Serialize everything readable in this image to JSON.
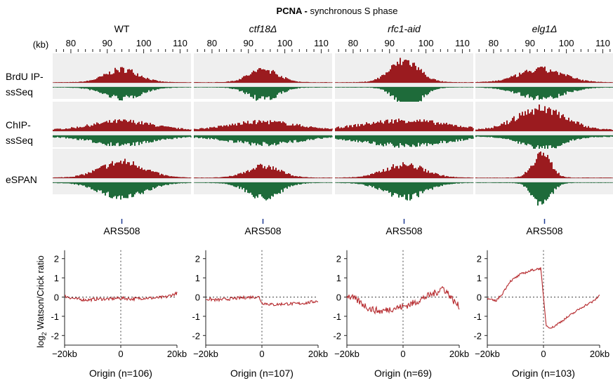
{
  "title": {
    "bold": "PCNA -",
    "rest": " synchronous S phase"
  },
  "kb_unit_label": "(kb)",
  "coordinate_ticks": [
    "80",
    "90",
    "100",
    "110"
  ],
  "coordinate_range_kb": [
    75,
    113
  ],
  "columns": [
    {
      "name": "WT",
      "italic": false,
      "origin_label": "ARS508",
      "xaxis_title": "Origin (n=106)"
    },
    {
      "name": "ctf18Δ",
      "italic": true,
      "origin_label": "ARS508",
      "xaxis_title": "Origin (n=107)"
    },
    {
      "name": "rfc1-aid",
      "italic": true,
      "origin_label": "ARS508",
      "xaxis_title": "Origin (n=69)"
    },
    {
      "name": "elg1Δ",
      "italic": true,
      "origin_label": "ARS508",
      "xaxis_title": "Origin (n=103)"
    }
  ],
  "track_rows": [
    {
      "label_lines": [
        "BrdU IP-",
        "ssSeq"
      ],
      "scale_top": "367",
      "scale_bottom": "421"
    },
    {
      "label_lines": [
        "ChIP-",
        "ssSeq"
      ],
      "scale_top": "188",
      "scale_bottom": "197"
    },
    {
      "label_lines": [
        "eSPAN"
      ],
      "scale_top": "485",
      "scale_bottom": "506"
    }
  ],
  "colors": {
    "watson": "#9b1b1f",
    "crick": "#1e6b3a",
    "ratio_line": "#b5282c",
    "track_bg": "#efefef",
    "origin_tick": "#1f3a93"
  },
  "chart_data": {
    "type": "line",
    "ylabel_prefix": "log",
    "ylabel_sub": "2",
    "ylabel_suffix": " Watson/Crick ratio",
    "ylim": [
      -2.5,
      2.5
    ],
    "yticks": [
      "2",
      "1",
      "0",
      "-1",
      "-2"
    ],
    "xlim_kb": [
      -20,
      20
    ],
    "xtick_labels": [
      "−20kb",
      "0",
      "20kb"
    ],
    "series": [
      {
        "x_kb": [
          -20,
          -16,
          -12,
          -8,
          -4,
          0,
          4,
          8,
          12,
          16,
          20
        ],
        "y": [
          0.05,
          -0.1,
          -0.15,
          -0.1,
          -0.1,
          -0.05,
          -0.1,
          -0.05,
          -0.05,
          0.0,
          0.2
        ]
      },
      {
        "x_kb": [
          -20,
          -16,
          -12,
          -8,
          -4,
          -1,
          0,
          2,
          4,
          8,
          12,
          16,
          20
        ],
        "y": [
          -0.1,
          -0.15,
          -0.1,
          -0.05,
          0.0,
          0.0,
          -0.3,
          -0.35,
          -0.4,
          -0.35,
          -0.35,
          -0.3,
          -0.2
        ]
      },
      {
        "x_kb": [
          -20,
          -16,
          -12,
          -8,
          -4,
          0,
          4,
          8,
          12,
          14,
          16,
          18,
          20
        ],
        "y": [
          0.1,
          -0.2,
          -0.6,
          -0.75,
          -0.6,
          -0.5,
          -0.3,
          0.0,
          0.25,
          0.5,
          0.2,
          -0.2,
          -0.5
        ]
      },
      {
        "x_kb": [
          -20,
          -17,
          -15,
          -12,
          -8,
          -4,
          -1,
          0,
          1,
          3,
          6,
          10,
          14,
          18,
          20
        ],
        "y": [
          -0.1,
          -0.2,
          0.1,
          0.8,
          1.2,
          1.4,
          1.5,
          0.0,
          -1.5,
          -1.6,
          -1.3,
          -0.9,
          -0.5,
          -0.2,
          0.1
        ]
      }
    ]
  }
}
